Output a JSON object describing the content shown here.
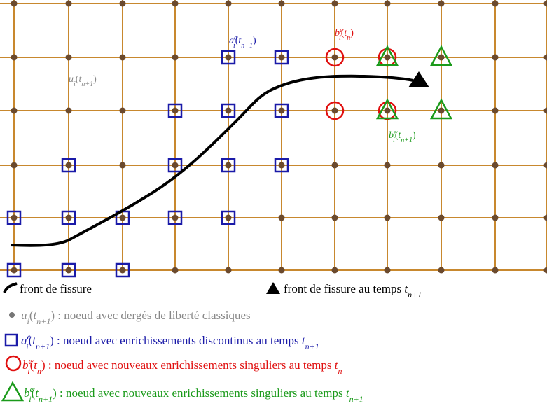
{
  "labels": {
    "u": [
      {
        "m": "u"
      },
      {
        "sub": "i"
      },
      "(",
      {
        "m": "t"
      },
      {
        "sub": "n+1"
      },
      ")"
    ],
    "a": [
      {
        "m": "a"
      },
      {
        "sup": "e"
      },
      {
        "sub": "i"
      },
      "(",
      {
        "m": "t"
      },
      {
        "sub": "n+1"
      },
      ")"
    ],
    "bn": [
      {
        "m": "b"
      },
      {
        "sup": "e"
      },
      {
        "sub": "i"
      },
      "(",
      {
        "m": "t"
      },
      {
        "sub": "n"
      },
      ")"
    ],
    "bn1": [
      {
        "m": "b"
      },
      {
        "sup": "e"
      },
      {
        "sub": "i"
      },
      "(",
      {
        "m": "t"
      },
      {
        "sub": "n+1"
      },
      ")"
    ]
  },
  "legend": {
    "crack": [
      "front de fissure"
    ],
    "front": [
      "front de fissure au temps ",
      {
        "m": "t"
      },
      {
        "sub": "n+1"
      }
    ],
    "classic": [
      {
        "m": "u"
      },
      {
        "sub": "i"
      },
      "(",
      {
        "m": "t"
      },
      {
        "sub": "n+1"
      },
      ") : noeud avec dergés de liberté classiques"
    ],
    "discont": [
      {
        "m": "a"
      },
      {
        "sup": "e"
      },
      {
        "sub": "i"
      },
      "(",
      {
        "m": "t"
      },
      {
        "sub": "n+1"
      },
      ") : noeud avec enrichissements discontinus au temps ",
      {
        "m": "t"
      },
      {
        "sub": "n+1"
      }
    ],
    "sing_n": [
      {
        "m": "b"
      },
      {
        "sup": "e"
      },
      {
        "sub": "i"
      },
      "(",
      {
        "m": "t"
      },
      {
        "sub": "n"
      },
      ") : noeud avec nouveaux enrichissements singuliers au temps ",
      {
        "m": "t"
      },
      {
        "sub": "n"
      }
    ],
    "sing_n1": [
      {
        "m": "b"
      },
      {
        "sup": "e"
      },
      {
        "sub": "i"
      },
      "(",
      {
        "m": "t"
      },
      {
        "sub": "n+1"
      },
      ") : noeud avec nouveaux enrichissements singuliers au temps ",
      {
        "m": "t"
      },
      {
        "sub": "n+1"
      }
    ]
  }
}
